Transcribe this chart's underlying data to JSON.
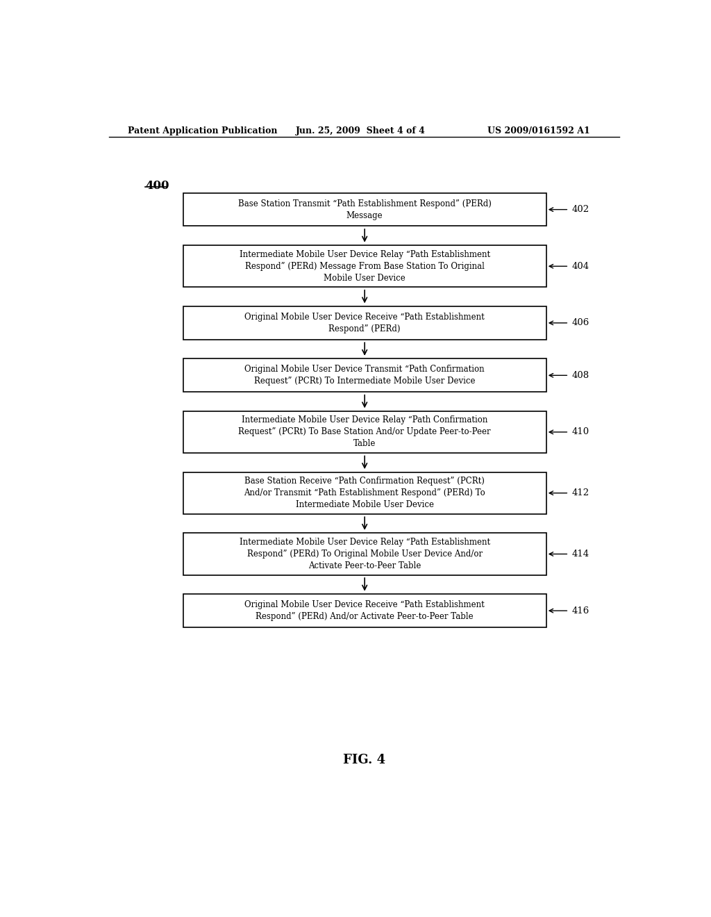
{
  "header_left": "Patent Application Publication",
  "header_mid": "Jun. 25, 2009  Sheet 4 of 4",
  "header_right": "US 2009/0161592 A1",
  "diagram_label": "400",
  "figure_label": "FIG. 4",
  "background_color": "#ffffff",
  "box_edge_color": "#000000",
  "box_fill_color": "#ffffff",
  "text_color": "#000000",
  "arrow_color": "#000000",
  "steps": [
    {
      "id": "402",
      "lines": [
        "Base Station Transmit “Path Establishment Respond” (PERd)",
        "Message"
      ]
    },
    {
      "id": "404",
      "lines": [
        "Intermediate Mobile User Device Relay “Path Establishment",
        "Respond” (PERd) Message From Base Station To Original",
        "Mobile User Device"
      ]
    },
    {
      "id": "406",
      "lines": [
        "Original Mobile User Device Receive “Path Establishment",
        "Respond” (PERd)"
      ]
    },
    {
      "id": "408",
      "lines": [
        "Original Mobile User Device Transmit “Path Confirmation",
        "Request” (PCRt) To Intermediate Mobile User Device"
      ]
    },
    {
      "id": "410",
      "lines": [
        "Intermediate Mobile User Device Relay “Path Confirmation",
        "Request” (PCRt) To Base Station And/or Update Peer-to-Peer",
        "Table"
      ]
    },
    {
      "id": "412",
      "lines": [
        "Base Station Receive “Path Confirmation Request” (PCRt)",
        "And/or Transmit “Path Establishment Respond” (PERd) To",
        "Intermediate Mobile User Device"
      ]
    },
    {
      "id": "414",
      "lines": [
        "Intermediate Mobile User Device Relay “Path Establishment",
        "Respond” (PERd) To Original Mobile User Device And/or",
        "Activate Peer-to-Peer Table"
      ]
    },
    {
      "id": "416",
      "lines": [
        "Original Mobile User Device Receive “Path Establishment",
        "Respond” (PERd) And/or Activate Peer-to-Peer Table"
      ]
    }
  ]
}
